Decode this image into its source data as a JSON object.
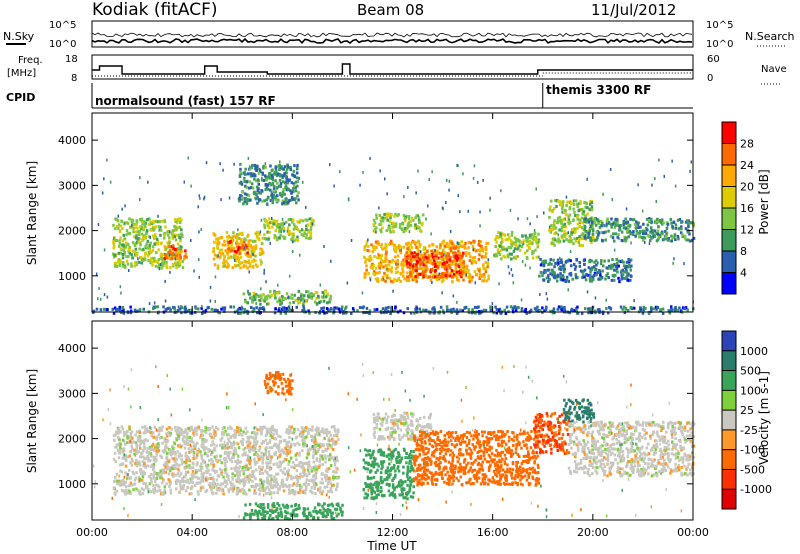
{
  "header": {
    "station": "Kodiak (fitACF)",
    "beam": "Beam 08",
    "date": "11/Jul/2012"
  },
  "noise_panel": {
    "left_label": "N.Sky",
    "right_label": "N.Search",
    "left_ticks": [
      "10^5",
      "10^0"
    ],
    "right_ticks": [
      "10^5",
      "10^0"
    ]
  },
  "freq_panel": {
    "left_label_line1": "Freq.",
    "left_label_line2": "[MHz]",
    "right_label": "Nave",
    "left_ticks": [
      "18",
      "8"
    ],
    "right_ticks": [
      "60",
      "0"
    ]
  },
  "cpid": {
    "label": "CPID",
    "mode1": "normalsound (fast) 157 RF",
    "mode2": "themis 3300 RF",
    "mode2_start_hour": 18.0
  },
  "x_axis": {
    "label": "Time UT",
    "ticks": [
      "00:00",
      "04:00",
      "08:00",
      "12:00",
      "16:00",
      "20:00",
      "00:00"
    ],
    "range_hours": [
      0,
      24
    ]
  },
  "y_axis": {
    "label": "Slant Range [km]",
    "ticks": [
      "1000",
      "2000",
      "3000",
      "4000"
    ],
    "range_km": [
      200,
      4600
    ]
  },
  "power_scale": {
    "title": "Power [dB]",
    "ticks": [
      "28",
      "24",
      "20",
      "16",
      "12",
      "8",
      "4"
    ],
    "colors": [
      "#ff0000",
      "#ff6a00",
      "#ffaa00",
      "#dccc00",
      "#7cc642",
      "#3c9a5a",
      "#2a5fb0",
      "#0000ff"
    ]
  },
  "velocity_scale": {
    "title": "Velocity [m s-1]",
    "ticks": [
      "1000",
      "500",
      "100",
      "25",
      "-25",
      "-100",
      "-500",
      "-1000"
    ],
    "colors": [
      "#2b45b8",
      "#2a7d6b",
      "#3aa55a",
      "#7ed03a",
      "#c8c8c0",
      "#ff9a2a",
      "#ff6a00",
      "#ff3000",
      "#e00000"
    ]
  },
  "chart_data": [
    {
      "type": "heatmap",
      "title": "Power [dB]",
      "xlabel": "Time UT",
      "ylabel": "Slant Range [km]",
      "xlim": [
        0,
        24
      ],
      "ylim": [
        200,
        4600
      ],
      "clim": [
        0,
        30
      ],
      "regions": [
        {
          "t": [
            0.8,
            3.6
          ],
          "r": [
            1200,
            2300
          ],
          "value": 14
        },
        {
          "t": [
            2.8,
            3.8
          ],
          "r": [
            1400,
            1700
          ],
          "value": 24
        },
        {
          "t": [
            4.8,
            6.8
          ],
          "r": [
            1200,
            2000
          ],
          "value": 18
        },
        {
          "t": [
            5.2,
            6.2
          ],
          "r": [
            1500,
            1800
          ],
          "value": 24
        },
        {
          "t": [
            6.8,
            8.8
          ],
          "r": [
            1800,
            2300
          ],
          "value": 14
        },
        {
          "t": [
            6.0,
            9.5
          ],
          "r": [
            400,
            700
          ],
          "value": 12
        },
        {
          "t": [
            5.8,
            8.2
          ],
          "r": [
            2600,
            3500
          ],
          "value": 8
        },
        {
          "t": [
            10.8,
            15.8
          ],
          "r": [
            900,
            1800
          ],
          "value": 20
        },
        {
          "t": [
            12.5,
            14.8
          ],
          "r": [
            1000,
            1600
          ],
          "value": 26
        },
        {
          "t": [
            11.2,
            13.2
          ],
          "r": [
            2000,
            2400
          ],
          "value": 14
        },
        {
          "t": [
            16.0,
            17.8
          ],
          "r": [
            1400,
            2000
          ],
          "value": 14
        },
        {
          "t": [
            18.2,
            20.0
          ],
          "r": [
            1700,
            2700
          ],
          "value": 14
        },
        {
          "t": [
            17.8,
            21.5
          ],
          "r": [
            900,
            1400
          ],
          "value": 7
        },
        {
          "t": [
            19.5,
            24.0
          ],
          "r": [
            1800,
            2300
          ],
          "value": 9
        },
        {
          "t": [
            0.0,
            24.0
          ],
          "r": [
            200,
            350
          ],
          "value": 6
        }
      ]
    },
    {
      "type": "heatmap",
      "title": "Velocity [m s-1]",
      "xlabel": "Time UT",
      "ylabel": "Slant Range [km]",
      "xlim": [
        0,
        24
      ],
      "ylim": [
        200,
        4600
      ],
      "clim": [
        -1000,
        1000
      ],
      "regions": [
        {
          "t": [
            0.8,
            9.8
          ],
          "r": [
            800,
            2300
          ],
          "value": 0
        },
        {
          "t": [
            11.2,
            13.5
          ],
          "r": [
            2000,
            2600
          ],
          "value": 0
        },
        {
          "t": [
            10.8,
            12.8
          ],
          "r": [
            700,
            1800
          ],
          "value": 100
        },
        {
          "t": [
            12.8,
            17.8
          ],
          "r": [
            1000,
            2200
          ],
          "value": -150
        },
        {
          "t": [
            17.6,
            19.0
          ],
          "r": [
            1700,
            2600
          ],
          "value": -300
        },
        {
          "t": [
            18.8,
            20.0
          ],
          "r": [
            2400,
            2900
          ],
          "value": 600
        },
        {
          "t": [
            19.0,
            24.0
          ],
          "r": [
            1200,
            2400
          ],
          "value": 0
        },
        {
          "t": [
            6.0,
            10.0
          ],
          "r": [
            250,
            600
          ],
          "value": 120
        },
        {
          "t": [
            6.8,
            8.0
          ],
          "r": [
            3000,
            3500
          ],
          "value": -120
        }
      ]
    }
  ]
}
